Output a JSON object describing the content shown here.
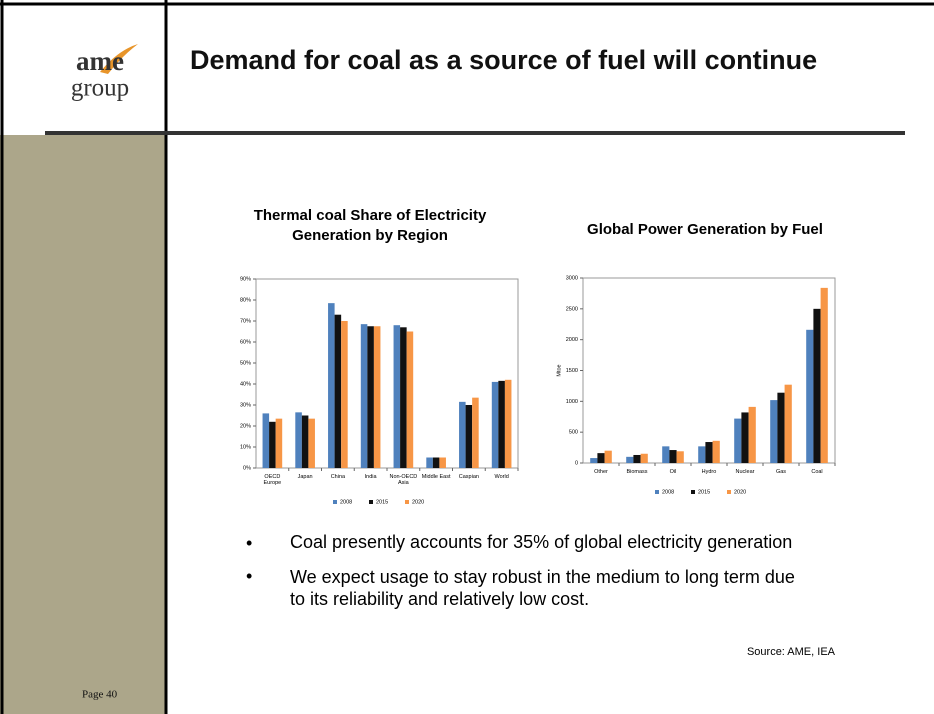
{
  "header": {
    "logo_top": "ame",
    "logo_bottom": "group",
    "title": "Demand for coal as a source of fuel will continue"
  },
  "chart_data": [
    {
      "type": "bar",
      "title": "Thermal coal Share of Electricity Generation by Region",
      "categories": [
        "OECD Europe",
        "Japan",
        "China",
        "India",
        "Non-OECD Asia",
        "Middle East",
        "Caspian",
        "World"
      ],
      "series": [
        {
          "name": "2008",
          "color": "#4f81bd",
          "values": [
            26,
            26.5,
            78.5,
            68.5,
            68,
            5,
            31.5,
            41
          ]
        },
        {
          "name": "2015",
          "color": "#111111",
          "values": [
            22,
            25,
            73,
            67.5,
            67,
            5,
            30,
            41.5
          ]
        },
        {
          "name": "2020",
          "color": "#f79646",
          "values": [
            23.5,
            23.5,
            70,
            67.5,
            65,
            5,
            33.5,
            42
          ]
        }
      ],
      "ylim": [
        0,
        90
      ],
      "yticks": [
        {
          "value": 0,
          "label": "0%"
        },
        {
          "value": 10,
          "label": "10%"
        },
        {
          "value": 20,
          "label": "20%"
        },
        {
          "value": 30,
          "label": "30%"
        },
        {
          "value": 40,
          "label": "40%"
        },
        {
          "value": 50,
          "label": "50%"
        },
        {
          "value": 60,
          "label": "60%"
        },
        {
          "value": 70,
          "label": "70%"
        },
        {
          "value": 80,
          "label": "80%"
        },
        {
          "value": 90,
          "label": "90%"
        }
      ],
      "legend": "bottom"
    },
    {
      "type": "bar",
      "title": "Global Power Generation by Fuel",
      "y_label": "Mtoe",
      "categories": [
        "Other",
        "Biomass",
        "Oil",
        "Hydro",
        "Nuclear",
        "Gas",
        "Coal"
      ],
      "series": [
        {
          "name": "2008",
          "color": "#4f81bd",
          "values": [
            80,
            100,
            270,
            270,
            720,
            1020,
            2160
          ]
        },
        {
          "name": "2015",
          "color": "#111111",
          "values": [
            160,
            130,
            210,
            340,
            820,
            1140,
            2500
          ]
        },
        {
          "name": "2020",
          "color": "#f79646",
          "values": [
            200,
            150,
            190,
            360,
            910,
            1270,
            2840
          ]
        }
      ],
      "ylim": [
        0,
        3000
      ],
      "yticks": [
        0,
        500,
        1000,
        1500,
        2000,
        2500,
        3000
      ],
      "legend": "bottom"
    }
  ],
  "bullets": [
    "Coal presently accounts for 35% of global electricity generation",
    "We expect usage to stay robust in the medium to long term due to its reliability and relatively low cost."
  ],
  "source": "Source:  AME, IEA",
  "footer": {
    "page": "Page 40"
  }
}
